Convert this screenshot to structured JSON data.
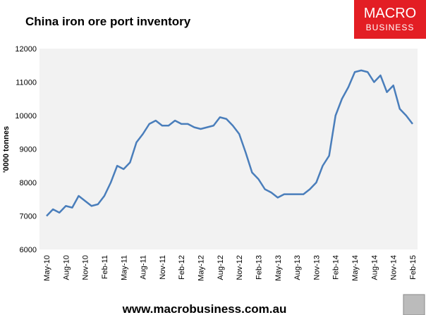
{
  "chart_data": {
    "type": "line",
    "title": "China iron ore port inventory",
    "y_label": "'0000 tonnes",
    "brand": {
      "line1": "MACRO",
      "line2": "BUSINESS"
    },
    "footer": "www.macrobusiness.com.au",
    "categories": [
      "May-10",
      null,
      null,
      "Aug-10",
      null,
      null,
      "Nov-10",
      null,
      null,
      "Feb-11",
      null,
      null,
      "May-11",
      null,
      null,
      "Aug-11",
      null,
      null,
      "Nov-11",
      null,
      null,
      "Feb-12",
      null,
      null,
      "May-12",
      null,
      null,
      "Aug-12",
      null,
      null,
      "Nov-12",
      null,
      null,
      "Feb-13",
      null,
      null,
      "May-13",
      null,
      null,
      "Aug-13",
      null,
      null,
      "Nov-13",
      null,
      null,
      "Feb-14",
      null,
      null,
      "May-14",
      null,
      null,
      "Aug-14",
      null,
      null,
      "Nov-14",
      null,
      null,
      "Feb-15"
    ],
    "series": [
      {
        "name": "China iron ore port inventory",
        "color": "#4a7ebb",
        "values": [
          7000,
          7200,
          7100,
          7300,
          7250,
          7600,
          7450,
          7300,
          7350,
          7600,
          8000,
          8500,
          8400,
          8600,
          9200,
          9450,
          9750,
          9850,
          9700,
          9700,
          9850,
          9750,
          9750,
          9650,
          9600,
          9650,
          9700,
          9950,
          9900,
          9700,
          9450,
          8900,
          8300,
          8100,
          7800,
          7700,
          7550,
          7650,
          7650,
          7650,
          7650,
          7800,
          8000,
          8500,
          8800,
          10000,
          10500,
          10850,
          11300,
          11350,
          11300,
          11000,
          11200,
          10700,
          10900,
          10200,
          10000,
          9750
        ]
      }
    ],
    "ylim": [
      6000,
      12000
    ],
    "yticks": [
      6000,
      7000,
      8000,
      9000,
      10000,
      11000,
      12000
    ],
    "grid": false
  }
}
